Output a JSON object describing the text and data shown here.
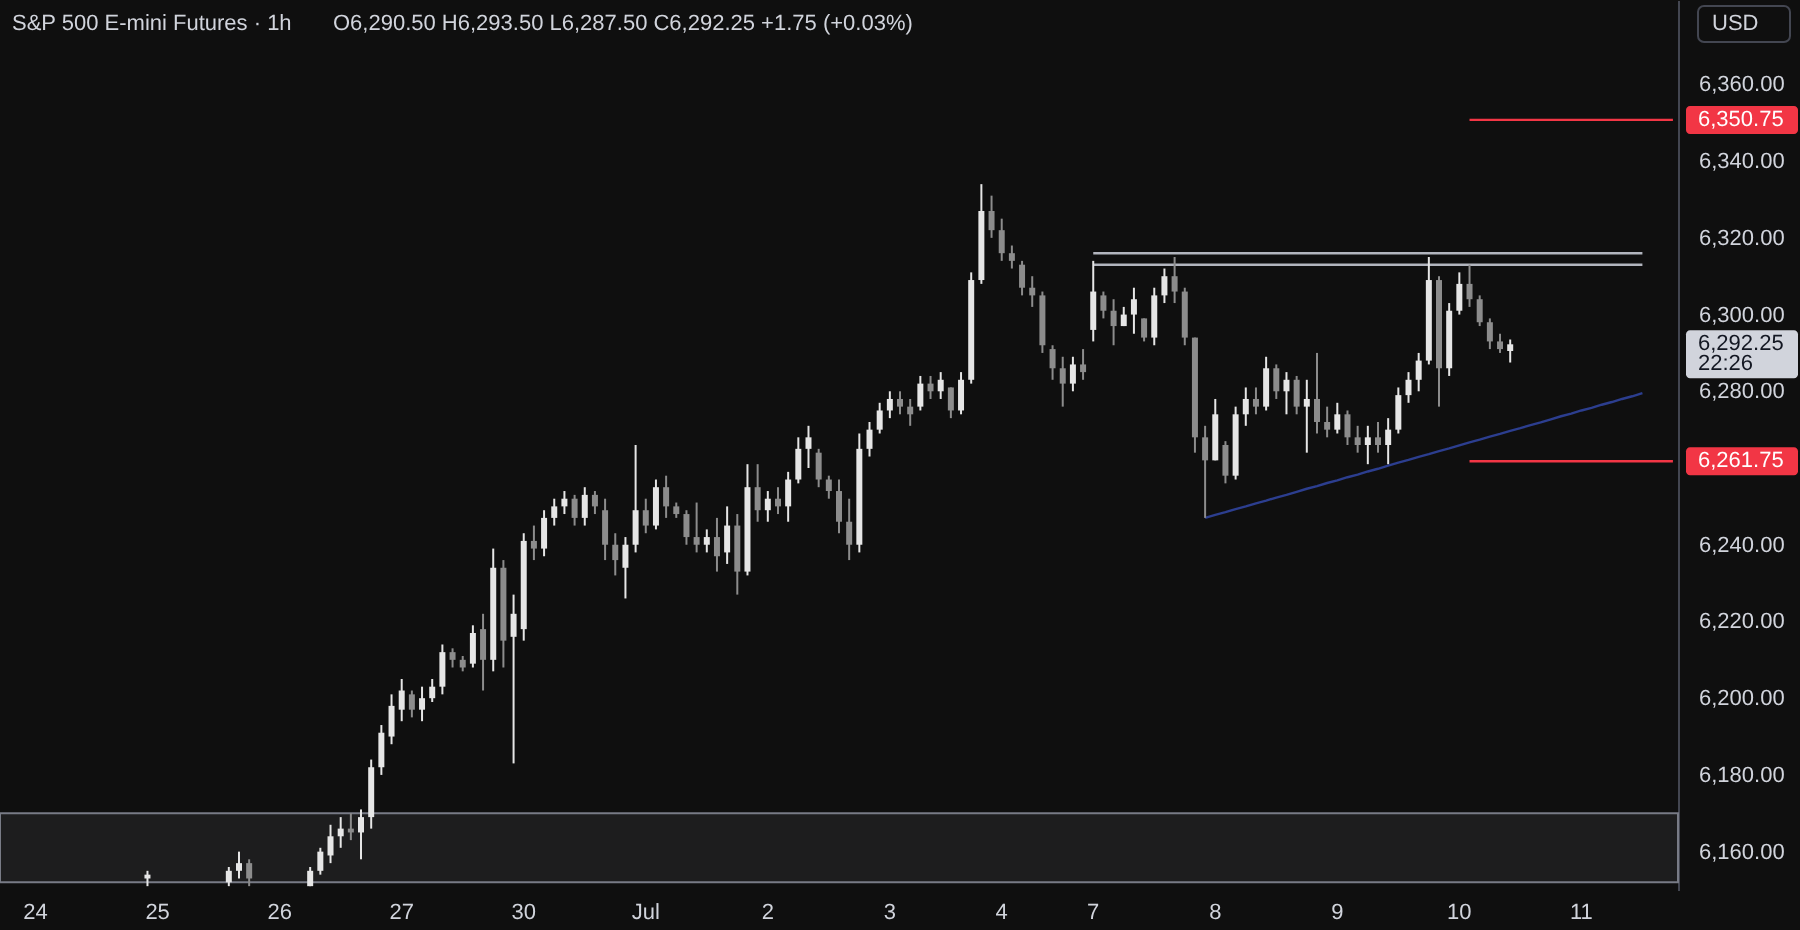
{
  "chart_data": {
    "type": "candlestick",
    "title": "S&P 500 E-mini Futures · 1h",
    "subtitle": "O6,290.50  H6,293.50  L6,287.50  C6,292.25  +1.75 (+0.03%)",
    "ylabel": "USD",
    "categories": [
      null,
      null,
      null,
      "24",
      null,
      null,
      null,
      null,
      null,
      null,
      null,
      null,
      null,
      null,
      null,
      "25",
      null,
      null,
      null,
      null,
      null,
      null,
      null,
      null,
      null,
      null,
      null,
      "26",
      null,
      null,
      null,
      null,
      null,
      null,
      null,
      null,
      null,
      null,
      null,
      "27",
      null,
      null,
      null,
      null,
      null,
      null,
      null,
      null,
      null,
      null,
      null,
      "30",
      null,
      null,
      null,
      null,
      null,
      null,
      null,
      null,
      null,
      null,
      null,
      "Jul",
      null,
      null,
      null,
      null,
      null,
      null,
      null,
      null,
      null,
      null,
      null,
      "2",
      null,
      null,
      null,
      null,
      null,
      null,
      null,
      null,
      null,
      null,
      null,
      "3",
      null,
      null,
      null,
      null,
      null,
      null,
      null,
      null,
      null,
      null,
      "4",
      null,
      null,
      null,
      null,
      null,
      null,
      null,
      null,
      "7",
      null,
      null,
      null,
      null,
      null,
      null,
      null,
      null,
      null,
      null,
      null,
      "8",
      null,
      null,
      null,
      null,
      null,
      null,
      null,
      null,
      null,
      null,
      null,
      "9",
      null,
      null,
      null,
      null,
      null,
      null,
      null,
      null,
      null,
      null,
      null,
      "10",
      null,
      null,
      null,
      null,
      null,
      null,
      null,
      null,
      null,
      null,
      null,
      "11",
      null,
      null,
      null,
      null,
      null,
      null,
      null,
      null,
      null
    ],
    "ohlc": [
      null,
      null,
      null,
      null,
      null,
      null,
      null,
      null,
      null,
      null,
      null,
      null,
      null,
      null,
      [
        6153,
        6155,
        6151,
        6154
      ],
      null,
      null,
      null,
      null,
      null,
      null,
      null,
      [
        6152,
        6156,
        6151,
        6155
      ],
      [
        6155,
        6160,
        6153,
        6157
      ],
      [
        6157,
        6158,
        6151,
        6153
      ],
      null,
      null,
      null,
      null,
      null,
      [
        6151,
        6156,
        6151,
        6155
      ],
      [
        6155,
        6161,
        6154,
        6160
      ],
      [
        6159,
        6167,
        6157,
        6164
      ],
      [
        6164,
        6169,
        6161,
        6166
      ],
      [
        6166,
        6170,
        6163,
        6165
      ],
      [
        6165,
        6171,
        6158,
        6169
      ],
      [
        6169,
        6184,
        6166,
        6182
      ],
      [
        6182,
        6193,
        6180,
        6191
      ],
      [
        6190,
        6201,
        6188,
        6198
      ],
      [
        6197,
        6205,
        6194,
        6202
      ],
      [
        6201,
        6202,
        6195,
        6197
      ],
      [
        6197,
        6203,
        6194,
        6200
      ],
      [
        6200,
        6205,
        6199,
        6203
      ],
      [
        6203,
        6214,
        6201,
        6212
      ],
      [
        6212,
        6213,
        6208,
        6210
      ],
      [
        6210,
        6211,
        6207,
        6208
      ],
      [
        6209,
        6219,
        6208,
        6217
      ],
      [
        6218,
        6222,
        6202,
        6210
      ],
      [
        6210,
        6239,
        6207,
        6234
      ],
      [
        6234,
        6236,
        6208,
        6215
      ],
      [
        6216,
        6227,
        6183,
        6222
      ],
      [
        6218,
        6243,
        6215,
        6241
      ],
      [
        6241,
        6245,
        6236,
        6239
      ],
      [
        6239,
        6249,
        6237,
        6247
      ],
      [
        6247,
        6252,
        6245,
        6250
      ],
      [
        6250,
        6254,
        6248,
        6252
      ],
      [
        6252,
        6253,
        6245,
        6247
      ],
      [
        6247,
        6255,
        6245,
        6253
      ],
      [
        6253,
        6254,
        6248,
        6250
      ],
      [
        6249,
        6252,
        6236,
        6240
      ],
      [
        6240,
        6243,
        6232,
        6236
      ],
      [
        6234,
        6242,
        6226,
        6240
      ],
      [
        6240,
        6266,
        6238,
        6249
      ],
      [
        6249,
        6252,
        6243,
        6245
      ],
      [
        6245,
        6257,
        6244,
        6255
      ],
      [
        6255,
        6258,
        6247,
        6250
      ],
      [
        6250,
        6251,
        6247,
        6248
      ],
      [
        6248,
        6249,
        6240,
        6242
      ],
      [
        6242,
        6251,
        6238,
        6240
      ],
      [
        6240,
        6244,
        6238,
        6242
      ],
      [
        6242,
        6247,
        6233,
        6237
      ],
      [
        6238,
        6250,
        6235,
        6245
      ],
      [
        6245,
        6248,
        6227,
        6233
      ],
      [
        6233,
        6261,
        6232,
        6255
      ],
      [
        6255,
        6261,
        6246,
        6249
      ],
      [
        6249,
        6254,
        6246,
        6252
      ],
      [
        6252,
        6255,
        6248,
        6250
      ],
      [
        6250,
        6259,
        6246,
        6257
      ],
      [
        6257,
        6268,
        6256,
        6265
      ],
      [
        6265,
        6271,
        6260,
        6268
      ],
      [
        6264,
        6265,
        6255,
        6257
      ],
      [
        6257,
        6258,
        6252,
        6254
      ],
      [
        6254,
        6257,
        6243,
        6246
      ],
      [
        6246,
        6252,
        6236,
        6240
      ],
      [
        6240,
        6269,
        6238,
        6265
      ],
      [
        6265,
        6272,
        6263,
        6270
      ],
      [
        6270,
        6277,
        6269,
        6275
      ],
      [
        6275,
        6280,
        6273,
        6278
      ],
      [
        6278,
        6280,
        6274,
        6276
      ],
      [
        6276,
        6278,
        6271,
        6274
      ],
      [
        6276,
        6284,
        6275,
        6282
      ],
      [
        6282,
        6284,
        6278,
        6280
      ],
      [
        6280,
        6285,
        6278,
        6283
      ],
      [
        6281,
        6281,
        6273,
        6275
      ],
      [
        6275,
        6285,
        6274,
        6283
      ],
      [
        6283,
        6311,
        6282,
        6309
      ],
      [
        6309,
        6334,
        6308,
        6327
      ],
      [
        6327,
        6331,
        6320,
        6322
      ],
      [
        6322,
        6325,
        6314,
        6316
      ],
      [
        6316,
        6318,
        6312,
        6314
      ],
      [
        6313,
        6314,
        6305,
        6307
      ],
      [
        6307,
        6310,
        6302,
        6305
      ],
      [
        6305,
        6306,
        6290,
        6292
      ],
      [
        6291,
        6292,
        6283,
        6286
      ],
      [
        6286,
        6289,
        6276,
        6282
      ],
      [
        6282,
        6289,
        6280,
        6287
      ],
      [
        6287,
        6291,
        6283,
        6285
      ],
      [
        6296,
        6314,
        6293,
        6306
      ],
      [
        6305,
        6306,
        6299,
        6301
      ],
      [
        6301,
        6304,
        6292,
        6297
      ],
      [
        6297,
        6302,
        6297,
        6300
      ],
      [
        6300,
        6307,
        6295,
        6304
      ],
      [
        6299,
        6299,
        6293,
        6294
      ],
      [
        6294,
        6307,
        6292,
        6305
      ],
      [
        6305,
        6312,
        6303,
        6310
      ],
      [
        6310,
        6315,
        6303,
        6306
      ],
      [
        6306,
        6307,
        6292,
        6294
      ],
      [
        6294,
        6294,
        6264,
        6268
      ],
      [
        6268,
        6271,
        6247,
        6262
      ],
      [
        6262,
        6278,
        6262,
        6274
      ],
      [
        6266,
        6267,
        6256,
        6258
      ],
      [
        6258,
        6276,
        6257,
        6274
      ],
      [
        6274,
        6281,
        6271,
        6278
      ],
      [
        6278,
        6281,
        6274,
        6276
      ],
      [
        6276,
        6289,
        6275,
        6286
      ],
      [
        6286,
        6287,
        6278,
        6280
      ],
      [
        6280,
        6285,
        6274,
        6283
      ],
      [
        6283,
        6284,
        6274,
        6276
      ],
      [
        6276,
        6283,
        6264,
        6278
      ],
      [
        6278,
        6290,
        6269,
        6272
      ],
      [
        6272,
        6276,
        6268,
        6270
      ],
      [
        6270,
        6277,
        6269,
        6274
      ],
      [
        6274,
        6275,
        6266,
        6268
      ],
      [
        6268,
        6271,
        6264,
        6266
      ],
      [
        6266,
        6271,
        6261,
        6268
      ],
      [
        6268,
        6272,
        6264,
        6266
      ],
      [
        6266,
        6273,
        6261,
        6270
      ],
      [
        6270,
        6281,
        6269,
        6279
      ],
      [
        6279,
        6285,
        6277,
        6283
      ],
      [
        6283,
        6290,
        6280,
        6288
      ],
      [
        6288,
        6315,
        6287,
        6309
      ],
      [
        6309,
        6310,
        6276,
        6286
      ],
      [
        6286,
        6303,
        6284,
        6301
      ],
      [
        6301,
        6311,
        6300,
        6308
      ],
      [
        6308,
        6313,
        6302,
        6304
      ],
      [
        6304,
        6305,
        6297,
        6298
      ],
      [
        6298,
        6299,
        6291,
        6293
      ],
      [
        6293,
        6295,
        6290,
        6291
      ],
      [
        6290.5,
        6293.5,
        6287.5,
        6292.25
      ],
      null,
      null,
      null,
      null,
      null,
      null,
      null,
      null,
      null,
      null,
      null,
      null,
      null,
      null,
      null,
      null
    ],
    "colors": [
      null,
      null,
      null,
      null,
      null,
      null,
      null,
      null,
      null,
      null,
      null,
      null,
      null,
      null,
      "#e6e6e6",
      null,
      null,
      null,
      null,
      null,
      null,
      null,
      "#e6e6e6",
      "#e6e6e6",
      "#8c8c8c",
      null,
      null,
      null,
      null,
      null,
      "#e6e6e6",
      "#e6e6e6",
      "#e6e6e6",
      "#e6e6e6",
      "#8c8c8c",
      "#e6e6e6",
      "#e6e6e6",
      "#e6e6e6",
      "#e6e6e6",
      "#e6e6e6",
      "#8c8c8c",
      "#e6e6e6",
      "#e6e6e6",
      "#e6e6e6",
      "#8c8c8c",
      "#8c8c8c",
      "#e6e6e6",
      "#8c8c8c",
      "#e6e6e6",
      "#8c8c8c",
      "#e6e6e6",
      "#e6e6e6",
      "#8c8c8c",
      "#e6e6e6",
      "#e6e6e6",
      "#e6e6e6",
      "#8c8c8c",
      "#e6e6e6",
      "#8c8c8c",
      "#8c8c8c",
      "#8c8c8c",
      "#e6e6e6",
      "#e6e6e6",
      "#8c8c8c",
      "#e6e6e6",
      "#8c8c8c",
      "#8c8c8c",
      "#8c8c8c",
      "#8c8c8c",
      "#e6e6e6",
      "#8c8c8c",
      "#e6e6e6",
      "#8c8c8c",
      "#e6e6e6",
      "#8c8c8c",
      "#e6e6e6",
      "#8c8c8c",
      "#e6e6e6",
      "#e6e6e6",
      "#e6e6e6",
      "#8c8c8c",
      "#8c8c8c",
      "#8c8c8c",
      "#8c8c8c",
      "#e6e6e6",
      "#e6e6e6",
      "#e6e6e6",
      "#e6e6e6",
      "#8c8c8c",
      "#8c8c8c",
      "#e6e6e6",
      "#8c8c8c",
      "#e6e6e6",
      "#8c8c8c",
      "#e6e6e6",
      "#e6e6e6",
      "#e6e6e6",
      "#8c8c8c",
      "#8c8c8c",
      "#8c8c8c",
      "#8c8c8c",
      "#8c8c8c",
      "#8c8c8c",
      "#8c8c8c",
      "#8c8c8c",
      "#e6e6e6",
      "#8c8c8c",
      "#e6e6e6",
      "#8c8c8c",
      "#8c8c8c",
      "#e6e6e6",
      "#e6e6e6",
      "#8c8c8c",
      "#e6e6e6",
      "#e6e6e6",
      "#8c8c8c",
      "#8c8c8c",
      "#8c8c8c",
      "#8c8c8c",
      "#e6e6e6",
      "#8c8c8c",
      "#e6e6e6",
      "#e6e6e6",
      "#8c8c8c",
      "#e6e6e6",
      "#8c8c8c",
      "#e6e6e6",
      "#8c8c8c",
      "#e6e6e6",
      "#8c8c8c",
      "#8c8c8c",
      "#e6e6e6",
      "#8c8c8c",
      "#8c8c8c",
      "#e6e6e6",
      "#8c8c8c",
      "#e6e6e6",
      "#e6e6e6",
      "#e6e6e6",
      "#e6e6e6",
      "#e6e6e6",
      "#8c8c8c",
      "#e6e6e6",
      "#e6e6e6",
      "#8c8c8c",
      "#8c8c8c",
      "#8c8c8c",
      "#8c8c8c",
      "#e6e6e6",
      null,
      null,
      null,
      null,
      null,
      null,
      null,
      null,
      null,
      null,
      null,
      null,
      null,
      null,
      null,
      null
    ],
    "ylim": [
      6150,
      6382
    ],
    "yticks": [
      {
        "value": 6160,
        "label": "6,160.00"
      },
      {
        "value": 6180,
        "label": "6,180.00"
      },
      {
        "value": 6200,
        "label": "6,200.00"
      },
      {
        "value": 6220,
        "label": "6,220.00"
      },
      {
        "value": 6240,
        "label": "6,240.00"
      },
      {
        "value": 6280,
        "label": "6,280.00"
      },
      {
        "value": 6300,
        "label": "6,300.00"
      },
      {
        "value": 6320,
        "label": "6,320.00"
      },
      {
        "value": 6340,
        "label": "6,340.00"
      },
      {
        "value": 6360,
        "label": "6,360.00"
      }
    ],
    "series": [
      {
        "type": "line",
        "color": "#2c3e8f",
        "values": [
          null,
          null,
          null,
          null,
          null,
          null,
          null,
          null,
          null,
          null,
          null,
          null,
          null,
          null,
          null,
          null,
          null,
          null,
          null,
          null,
          null,
          null,
          null,
          null,
          null,
          null,
          null,
          null,
          null,
          null,
          null,
          null,
          null,
          null,
          null,
          null,
          null,
          null,
          null,
          null,
          null,
          null,
          null,
          null,
          null,
          null,
          null,
          null,
          null,
          null,
          null,
          null,
          null,
          null,
          null,
          null,
          null,
          null,
          null,
          null,
          null,
          null,
          null,
          null,
          null,
          null,
          null,
          null,
          null,
          null,
          null,
          null,
          null,
          null,
          null,
          null,
          null,
          null,
          null,
          null,
          null,
          null,
          null,
          null,
          null,
          null,
          null,
          null,
          null,
          null,
          null,
          null,
          null,
          null,
          null,
          null,
          null,
          null,
          null,
          null,
          null,
          null,
          null,
          null,
          null,
          null,
          null,
          null,
          null,
          null,
          null,
          null,
          null,
          null,
          null,
          null,
          null,
          null,
          6247.0,
          6247.8,
          6248.5,
          6249.3,
          6250.0,
          6250.8,
          6251.5,
          6252.3,
          6253.0,
          6253.8,
          6254.6,
          6255.3,
          6256.1,
          6256.8,
          6257.6,
          6258.3,
          6259.1,
          6259.8,
          6260.6,
          6261.4,
          6262.1,
          6262.9,
          6263.6,
          6264.4,
          6265.1,
          6265.9,
          6266.7,
          6267.4,
          6268.2,
          6268.9,
          6269.7,
          6270.4,
          6271.2,
          6271.9,
          6272.7,
          6273.5,
          6274.2,
          6275.0,
          6275.7,
          6276.5,
          6277.2,
          6278.0,
          6278.7,
          6279.5,
          null,
          null,
          null
        ]
      },
      {
        "type": "line",
        "color": "#b2b5be",
        "values": [
          null,
          null,
          null,
          null,
          null,
          null,
          null,
          null,
          null,
          null,
          null,
          null,
          null,
          null,
          null,
          null,
          null,
          null,
          null,
          null,
          null,
          null,
          null,
          null,
          null,
          null,
          null,
          null,
          null,
          null,
          null,
          null,
          null,
          null,
          null,
          null,
          null,
          null,
          null,
          null,
          null,
          null,
          null,
          null,
          null,
          null,
          null,
          null,
          null,
          null,
          null,
          null,
          null,
          null,
          null,
          null,
          null,
          null,
          null,
          null,
          null,
          null,
          null,
          null,
          null,
          null,
          null,
          null,
          null,
          null,
          null,
          null,
          null,
          null,
          null,
          null,
          null,
          null,
          null,
          null,
          null,
          null,
          null,
          null,
          null,
          null,
          null,
          null,
          null,
          null,
          null,
          null,
          null,
          null,
          null,
          null,
          null,
          null,
          null,
          null,
          null,
          null,
          null,
          null,
          null,
          null,
          null,
          6316,
          6316,
          6316,
          6316,
          6316,
          6316,
          6316,
          6316,
          6316,
          6316,
          6316,
          6316,
          6316,
          6316,
          6316,
          6316,
          6316,
          6316,
          6316,
          6316,
          6316,
          6316,
          6316,
          6316,
          6316,
          6316,
          6316,
          6316,
          6316,
          6316,
          6316,
          6316,
          6316,
          6316,
          6316,
          6316,
          6316,
          6316,
          6316,
          6316,
          6316,
          6316,
          6316,
          6316,
          6316,
          6316,
          6316,
          6316,
          6316,
          6316,
          6316,
          6316,
          6316,
          6316,
          6316,
          null,
          null,
          null
        ]
      },
      {
        "type": "line",
        "color": "#b2b5be",
        "values": [
          null,
          null,
          null,
          null,
          null,
          null,
          null,
          null,
          null,
          null,
          null,
          null,
          null,
          null,
          null,
          null,
          null,
          null,
          null,
          null,
          null,
          null,
          null,
          null,
          null,
          null,
          null,
          null,
          null,
          null,
          null,
          null,
          null,
          null,
          null,
          null,
          null,
          null,
          null,
          null,
          null,
          null,
          null,
          null,
          null,
          null,
          null,
          null,
          null,
          null,
          null,
          null,
          null,
          null,
          null,
          null,
          null,
          null,
          null,
          null,
          null,
          null,
          null,
          null,
          null,
          null,
          null,
          null,
          null,
          null,
          null,
          null,
          null,
          null,
          null,
          null,
          null,
          null,
          null,
          null,
          null,
          null,
          null,
          null,
          null,
          null,
          null,
          null,
          null,
          null,
          null,
          null,
          null,
          null,
          null,
          null,
          null,
          null,
          null,
          null,
          null,
          null,
          null,
          null,
          null,
          null,
          null,
          6313,
          6313,
          6313,
          6313,
          6313,
          6313,
          6313,
          6313,
          6313,
          6313,
          6313,
          6313,
          6313,
          6313,
          6313,
          6313,
          6313,
          6313,
          6313,
          6313,
          6313,
          6313,
          6313,
          6313,
          6313,
          6313,
          6313,
          6313,
          6313,
          6313,
          6313,
          6313,
          6313,
          6313,
          6313,
          6313,
          6313,
          6313,
          6313,
          6313,
          6313,
          6313,
          6313,
          6313,
          6313,
          6313,
          6313,
          6313,
          6313,
          6313,
          6313,
          6313,
          6313,
          6313,
          6313,
          null,
          null,
          null
        ]
      },
      {
        "type": "line",
        "color": "#f23645",
        "values": [
          null,
          null,
          null,
          null,
          null,
          null,
          null,
          null,
          null,
          null,
          null,
          null,
          null,
          null,
          null,
          null,
          null,
          null,
          null,
          null,
          null,
          null,
          null,
          null,
          null,
          null,
          null,
          null,
          null,
          null,
          null,
          null,
          null,
          null,
          null,
          null,
          null,
          null,
          null,
          null,
          null,
          null,
          null,
          null,
          null,
          null,
          null,
          null,
          null,
          null,
          null,
          null,
          null,
          null,
          null,
          null,
          null,
          null,
          null,
          null,
          null,
          null,
          null,
          null,
          null,
          null,
          null,
          null,
          null,
          null,
          null,
          null,
          null,
          null,
          null,
          null,
          null,
          null,
          null,
          null,
          null,
          null,
          null,
          null,
          null,
          null,
          null,
          null,
          null,
          null,
          null,
          null,
          null,
          null,
          null,
          null,
          null,
          null,
          null,
          null,
          null,
          null,
          null,
          null,
          null,
          null,
          null,
          null,
          null,
          null,
          null,
          null,
          null,
          null,
          null,
          null,
          null,
          null,
          null,
          null,
          null,
          null,
          null,
          null,
          null,
          null,
          null,
          null,
          null,
          null,
          null,
          null,
          null,
          null,
          null,
          null,
          null,
          null,
          null,
          null,
          null,
          null,
          null,
          null,
          6350.75,
          6350.75,
          6350.75,
          6350.75,
          6350.75,
          6350.75,
          6350.75,
          6350.75,
          6350.75,
          6350.75,
          6350.75,
          6350.75,
          6350.75,
          6350.75,
          6350.75,
          6350.75,
          6350.75,
          6350.75,
          6350.75,
          6350.75,
          6350.75
        ],
        "value_labels": [
          null,
          null,
          null,
          null,
          null,
          null,
          null,
          null,
          null,
          null,
          null,
          null,
          null,
          null,
          null,
          null,
          null,
          null,
          null,
          null,
          null,
          null,
          null,
          null,
          null,
          null,
          null,
          null,
          null,
          null,
          null,
          null,
          null,
          null,
          null,
          null,
          null,
          null,
          null,
          null,
          null,
          null,
          null,
          null,
          null,
          null,
          null,
          null,
          null,
          null,
          null,
          null,
          null,
          null,
          null,
          null,
          null,
          null,
          null,
          null,
          null,
          null,
          null,
          null,
          null,
          null,
          null,
          null,
          null,
          null,
          null,
          null,
          null,
          null,
          null,
          null,
          null,
          null,
          null,
          null,
          null,
          null,
          null,
          null,
          null,
          null,
          null,
          null,
          null,
          null,
          null,
          null,
          null,
          null,
          null,
          null,
          null,
          null,
          null,
          null,
          null,
          null,
          null,
          null,
          null,
          null,
          null,
          null,
          null,
          null,
          null,
          null,
          null,
          null,
          null,
          null,
          null,
          null,
          null,
          null,
          null,
          null,
          null,
          null,
          null,
          null,
          null,
          null,
          null,
          null,
          null,
          null,
          null,
          null,
          null,
          null,
          null,
          null,
          null,
          null,
          null,
          null,
          null,
          null,
          null,
          null,
          null,
          null,
          null,
          null,
          null,
          null,
          null,
          null,
          null,
          null,
          null,
          null,
          null,
          null,
          null,
          null,
          null,
          null,
          "6,350.75"
        ]
      },
      {
        "type": "line",
        "color": "#f23645",
        "values": [
          null,
          null,
          null,
          null,
          null,
          null,
          null,
          null,
          null,
          null,
          null,
          null,
          null,
          null,
          null,
          null,
          null,
          null,
          null,
          null,
          null,
          null,
          null,
          null,
          null,
          null,
          null,
          null,
          null,
          null,
          null,
          null,
          null,
          null,
          null,
          null,
          null,
          null,
          null,
          null,
          null,
          null,
          null,
          null,
          null,
          null,
          null,
          null,
          null,
          null,
          null,
          null,
          null,
          null,
          null,
          null,
          null,
          null,
          null,
          null,
          null,
          null,
          null,
          null,
          null,
          null,
          null,
          null,
          null,
          null,
          null,
          null,
          null,
          null,
          null,
          null,
          null,
          null,
          null,
          null,
          null,
          null,
          null,
          null,
          null,
          null,
          null,
          null,
          null,
          null,
          null,
          null,
          null,
          null,
          null,
          null,
          null,
          null,
          null,
          null,
          null,
          null,
          null,
          null,
          null,
          null,
          null,
          null,
          null,
          null,
          null,
          null,
          null,
          null,
          null,
          null,
          null,
          null,
          null,
          null,
          null,
          null,
          null,
          null,
          null,
          null,
          null,
          null,
          null,
          null,
          null,
          null,
          null,
          null,
          null,
          null,
          null,
          null,
          null,
          null,
          null,
          null,
          null,
          null,
          6261.75,
          6261.75,
          6261.75,
          6261.75,
          6261.75,
          6261.75,
          6261.75,
          6261.75,
          6261.75,
          6261.75,
          6261.75,
          6261.75,
          6261.75,
          6261.75,
          6261.75,
          6261.75,
          6261.75,
          6261.75,
          6261.75,
          6261.75,
          6261.75
        ],
        "value_labels": [
          null,
          null,
          null,
          null,
          null,
          null,
          null,
          null,
          null,
          null,
          null,
          null,
          null,
          null,
          null,
          null,
          null,
          null,
          null,
          null,
          null,
          null,
          null,
          null,
          null,
          null,
          null,
          null,
          null,
          null,
          null,
          null,
          null,
          null,
          null,
          null,
          null,
          null,
          null,
          null,
          null,
          null,
          null,
          null,
          null,
          null,
          null,
          null,
          null,
          null,
          null,
          null,
          null,
          null,
          null,
          null,
          null,
          null,
          null,
          null,
          null,
          null,
          null,
          null,
          null,
          null,
          null,
          null,
          null,
          null,
          null,
          null,
          null,
          null,
          null,
          null,
          null,
          null,
          null,
          null,
          null,
          null,
          null,
          null,
          null,
          null,
          null,
          null,
          null,
          null,
          null,
          null,
          null,
          null,
          null,
          null,
          null,
          null,
          null,
          null,
          null,
          null,
          null,
          null,
          null,
          null,
          null,
          null,
          null,
          null,
          null,
          null,
          null,
          null,
          null,
          null,
          null,
          null,
          null,
          null,
          null,
          null,
          null,
          null,
          null,
          null,
          null,
          null,
          null,
          null,
          null,
          null,
          null,
          null,
          null,
          null,
          null,
          null,
          null,
          null,
          null,
          null,
          null,
          null,
          null,
          null,
          null,
          null,
          null,
          null,
          null,
          null,
          null,
          null,
          null,
          null,
          null,
          null,
          null,
          null,
          null,
          null,
          null,
          null,
          "6,261.75"
        ]
      }
    ],
    "bands": [
      {
        "axis": "y",
        "from": 6152,
        "to": 6170,
        "color": "#787b86"
      }
    ],
    "annotations": [
      "6,292.25",
      "22:26"
    ]
  }
}
